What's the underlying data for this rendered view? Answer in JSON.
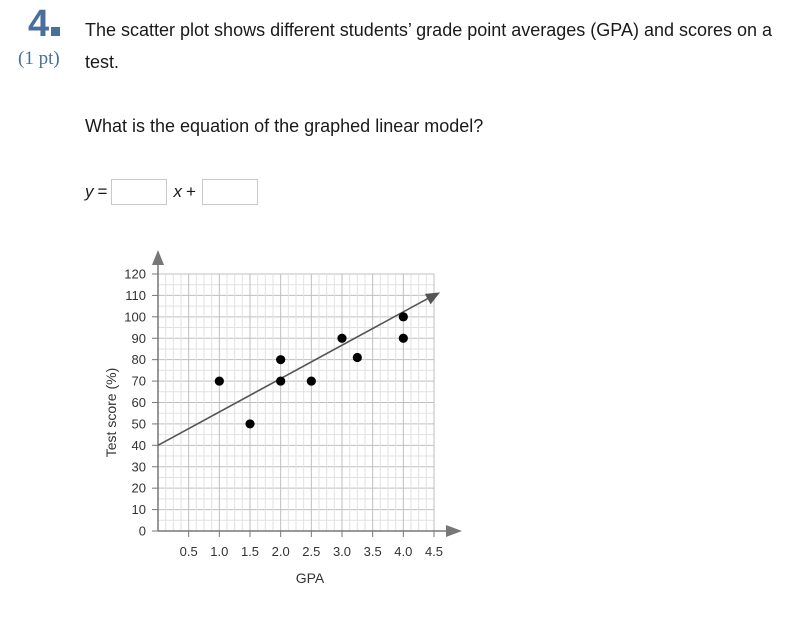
{
  "question": {
    "number": "4",
    "points": "(1 pt)",
    "prompt": "The scatter plot shows different students’ grade point averages (GPA) and scores on a test.",
    "ask": "What is the equation of the graphed linear model?"
  },
  "equation": {
    "lhs_var": "y",
    "equals": "=",
    "x_var": "x",
    "plus": "+",
    "slope_value": "",
    "intercept_value": ""
  },
  "chart_data": {
    "type": "scatter",
    "xlabel": "GPA",
    "ylabel": "Test score (%)",
    "xlim": [
      0,
      4.5
    ],
    "ylim": [
      0,
      120
    ],
    "xticks": [
      "0.5",
      "1.0",
      "1.5",
      "2.0",
      "2.5",
      "3.0",
      "3.5",
      "4.0",
      "4.5"
    ],
    "yticks": [
      "0",
      "10",
      "20",
      "30",
      "40",
      "50",
      "60",
      "70",
      "80",
      "90",
      "100",
      "110",
      "120"
    ],
    "grid": true,
    "points": [
      {
        "x": 1.0,
        "y": 70
      },
      {
        "x": 1.5,
        "y": 50
      },
      {
        "x": 2.0,
        "y": 80
      },
      {
        "x": 2.0,
        "y": 70
      },
      {
        "x": 2.5,
        "y": 70
      },
      {
        "x": 3.0,
        "y": 90
      },
      {
        "x": 3.25,
        "y": 81
      },
      {
        "x": 4.0,
        "y": 100
      },
      {
        "x": 4.0,
        "y": 90
      }
    ],
    "line": {
      "x1": 0,
      "y1": 40,
      "x2": 4.5,
      "y2": 110
    }
  }
}
